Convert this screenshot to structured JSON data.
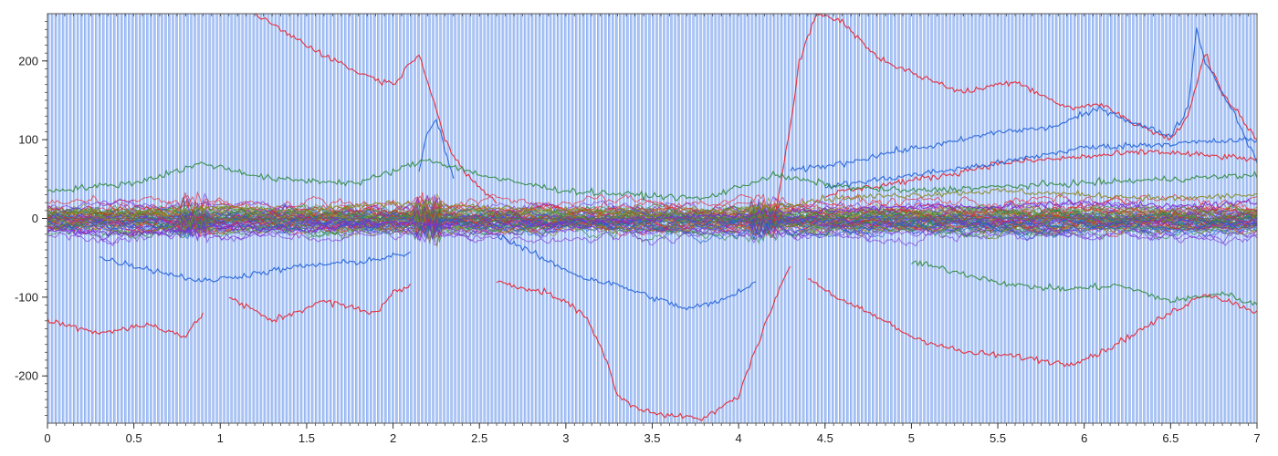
{
  "chart_data": {
    "type": "line",
    "title": "",
    "xlabel": "",
    "ylabel": "",
    "xlim": [
      0,
      7
    ],
    "ylim": [
      -260,
      260
    ],
    "x_ticks": [
      0,
      0.5,
      1,
      1.5,
      2,
      2.5,
      3,
      3.5,
      4,
      4.5,
      5,
      5.5,
      6,
      6.5,
      7
    ],
    "x_tick_labels": [
      "0",
      "0.5",
      "1",
      "1.5",
      "2",
      "2.5",
      "3",
      "3.5",
      "4",
      "4.5",
      "5",
      "5.5",
      "6",
      "6.5",
      "7"
    ],
    "y_ticks": [
      200,
      100,
      0,
      -100,
      -200
    ],
    "y_tick_labels": [
      "200",
      "100",
      "0",
      "-100",
      "-200"
    ],
    "background_stripes": {
      "color": "#a9c4f5",
      "line_color": "#3a6fe0",
      "count": 330
    },
    "legend": "none",
    "grid": false,
    "colors": {
      "red": "#e8202a",
      "blue": "#1f5fd6",
      "green": "#2e8b3a",
      "purple": "#7a2fd6",
      "olive": "#8a8a20"
    },
    "series": [
      {
        "color": "red",
        "x": [
          1.2,
          1.5,
          1.8,
          2.0,
          2.15,
          2.25,
          2.3,
          2.4,
          2.6
        ],
        "y": [
          260,
          220,
          185,
          170,
          210,
          140,
          100,
          60,
          20
        ]
      },
      {
        "color": "red",
        "x": [
          0.0,
          0.3,
          0.6,
          0.8,
          0.9
        ],
        "y": [
          -130,
          -145,
          -135,
          -150,
          -120
        ]
      },
      {
        "color": "red",
        "x": [
          1.05,
          1.3,
          1.6,
          1.9,
          2.0,
          2.1
        ],
        "y": [
          -100,
          -130,
          -105,
          -120,
          -95,
          -85
        ]
      },
      {
        "color": "red",
        "x": [
          2.6,
          2.9,
          3.1,
          3.2,
          3.3,
          3.4,
          3.6,
          3.8,
          4.0,
          4.1,
          4.2,
          4.3
        ],
        "y": [
          -80,
          -95,
          -120,
          -160,
          -225,
          -240,
          -250,
          -255,
          -225,
          -165,
          -110,
          -60
        ]
      },
      {
        "color": "red",
        "x": [
          4.2,
          4.3,
          4.35,
          4.45,
          4.6,
          4.8,
          5.0,
          5.3,
          5.6,
          5.9,
          6.1,
          6.3,
          6.5,
          6.6,
          6.7,
          6.8,
          7.0
        ],
        "y": [
          -10,
          120,
          200,
          260,
          250,
          205,
          185,
          160,
          175,
          140,
          145,
          120,
          100,
          130,
          210,
          160,
          100
        ]
      },
      {
        "color": "red",
        "x": [
          4.4,
          4.6,
          4.8,
          5.0,
          5.3,
          5.6,
          5.9,
          6.1,
          6.3,
          6.5,
          6.7,
          6.9,
          7.0
        ],
        "y": [
          -75,
          -105,
          -125,
          -150,
          -170,
          -175,
          -185,
          -170,
          -145,
          -120,
          -95,
          -110,
          -120
        ]
      },
      {
        "color": "red",
        "x": [
          4.5,
          4.9,
          5.2,
          5.5,
          5.8,
          6.1,
          6.4,
          6.7,
          7.0
        ],
        "y": [
          30,
          45,
          55,
          70,
          75,
          80,
          85,
          80,
          75
        ]
      },
      {
        "color": "blue",
        "x": [
          4.3,
          4.6,
          4.9,
          5.2,
          5.5,
          5.8,
          6.1,
          6.3,
          6.5,
          6.6,
          6.65,
          6.7,
          6.8,
          6.9,
          7.0
        ],
        "y": [
          60,
          70,
          85,
          95,
          110,
          115,
          140,
          120,
          105,
          140,
          240,
          200,
          160,
          120,
          70
        ]
      },
      {
        "color": "blue",
        "x": [
          4.5,
          5.0,
          5.5,
          6.0,
          6.5,
          7.0
        ],
        "y": [
          40,
          55,
          70,
          90,
          95,
          100
        ]
      },
      {
        "color": "blue",
        "x": [
          2.15,
          2.2,
          2.25,
          2.3,
          2.35
        ],
        "y": [
          60,
          110,
          125,
          90,
          50
        ]
      },
      {
        "color": "blue",
        "x": [
          2.6,
          2.9,
          3.1,
          3.3,
          3.5,
          3.7,
          3.9,
          4.1
        ],
        "y": [
          -20,
          -55,
          -75,
          -85,
          -100,
          -115,
          -105,
          -80
        ]
      },
      {
        "color": "blue",
        "x": [
          0.3,
          0.6,
          0.9,
          1.2,
          1.5,
          1.8,
          2.1
        ],
        "y": [
          -50,
          -65,
          -80,
          -70,
          -60,
          -55,
          -45
        ]
      },
      {
        "color": "green",
        "x": [
          5.0,
          5.3,
          5.6,
          5.9,
          6.2,
          6.5,
          6.8,
          7.0
        ],
        "y": [
          -55,
          -70,
          -85,
          -90,
          -85,
          -105,
          -95,
          -110
        ]
      },
      {
        "color": "green",
        "x": [
          0.0,
          0.5,
          0.9,
          1.3,
          1.8,
          2.2,
          2.6,
          3.0,
          3.4,
          3.8,
          4.2,
          4.6,
          5.0,
          5.5,
          6.0,
          6.5,
          7.0
        ],
        "y": [
          35,
          45,
          70,
          50,
          45,
          75,
          50,
          35,
          30,
          25,
          55,
          40,
          35,
          40,
          45,
          50,
          55
        ]
      },
      {
        "color": "purple",
        "x": [
          0.0,
          0.5,
          1.0,
          1.5,
          2.0,
          2.5,
          3.0,
          3.5,
          4.0,
          4.5,
          5.0,
          5.5,
          6.0,
          6.5,
          7.0
        ],
        "y": [
          -15,
          -20,
          -10,
          -15,
          -5,
          -10,
          -5,
          0,
          5,
          10,
          15,
          15,
          20,
          15,
          20
        ]
      },
      {
        "color": "olive",
        "x": [
          0.0,
          0.5,
          1.0,
          1.5,
          2.0,
          2.5,
          3.0,
          3.5,
          4.0,
          4.5,
          5.0,
          5.5,
          6.0,
          6.5,
          7.0
        ],
        "y": [
          10,
          5,
          15,
          10,
          20,
          15,
          10,
          5,
          10,
          25,
          30,
          35,
          30,
          25,
          30
        ]
      }
    ]
  }
}
